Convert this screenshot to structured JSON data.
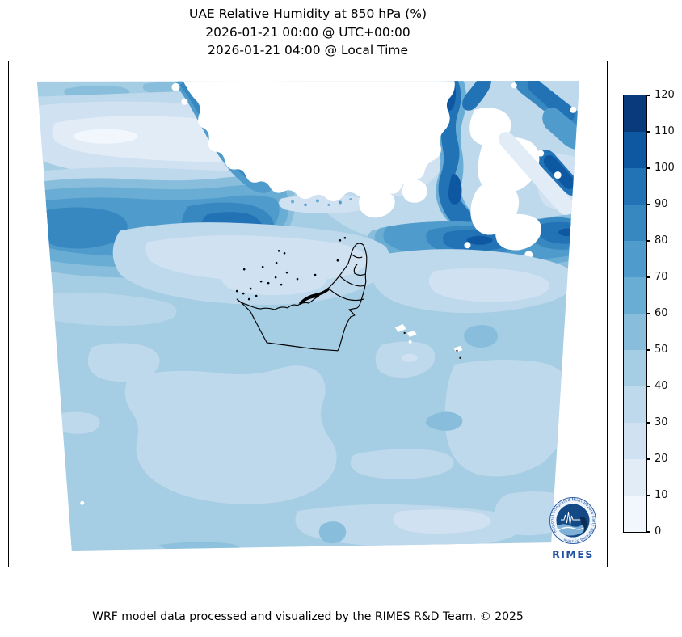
{
  "title": {
    "line1": "UAE Relative Humidity at 850 hPa (%)",
    "line2": "2026-01-21 00:00 @ UTC+00:00",
    "line3": "2026-01-21 04:00 @ Local Time"
  },
  "footer": {
    "credit": "WRF model data processed and visualized by the RIMES R&D Team. © 2025"
  },
  "logo": {
    "org": "RIMES",
    "ring_text": "Regional Integrated Multi-Hazard Early Warning System"
  },
  "colorbar": {
    "min": 0,
    "max": 120,
    "tick_step": 10,
    "ticks": [
      "0",
      "10",
      "20",
      "30",
      "40",
      "50",
      "60",
      "70",
      "80",
      "90",
      "100",
      "110",
      "120"
    ],
    "colors_low_to_high": [
      "#f1f7fd",
      "#e1ecf7",
      "#d0e1f2",
      "#bed8ec",
      "#a5cde3",
      "#88bedc",
      "#69add5",
      "#4f9bcb",
      "#3787c0",
      "#2272b6",
      "#0e58a2",
      "#083a7c"
    ],
    "outline_color": "#000000"
  },
  "map": {
    "outline_label": "United Arab Emirates coast and borders",
    "outline_color": "#000000",
    "masked_color": "#ffffff",
    "background_band": "40-50 %"
  },
  "chart_data": {
    "type": "heatmap",
    "title": "UAE Relative Humidity at 850 hPa (%)",
    "variable": "Relative Humidity",
    "pressure_level_hPa": 850,
    "units": "%",
    "time_utc": "2026-01-21 00:00 @ UTC+00:00",
    "time_local": "2026-01-21 04:00 @ Local Time",
    "model": "WRF",
    "colormap": "Blues, 12 discrete bands",
    "levels": [
      0,
      10,
      20,
      30,
      40,
      50,
      60,
      70,
      80,
      90,
      100,
      110,
      120
    ],
    "colorbar_range": [
      0,
      120
    ],
    "legend_position": "right",
    "grid": false,
    "regions": [
      {
        "area": "northwest band over southern Persian Gulf",
        "rh_percent": "60-100"
      },
      {
        "area": "top-left strip near domain edge",
        "rh_percent": "10-30"
      },
      {
        "area": "top-center and top-right white patches (terrain above 850 hPa)",
        "rh_percent": "masked / no data"
      },
      {
        "area": "sinuous streaks northeast of UAE",
        "rh_percent": "80-110"
      },
      {
        "area": "band just north of UAE coastline",
        "rh_percent": "20-30"
      },
      {
        "area": "UAE interior and central domain",
        "rh_percent": "30-40"
      },
      {
        "area": "southern half of domain",
        "rh_percent": "30-50"
      },
      {
        "area": "scattered lighter patches in south",
        "rh_percent": "20-40"
      }
    ]
  }
}
